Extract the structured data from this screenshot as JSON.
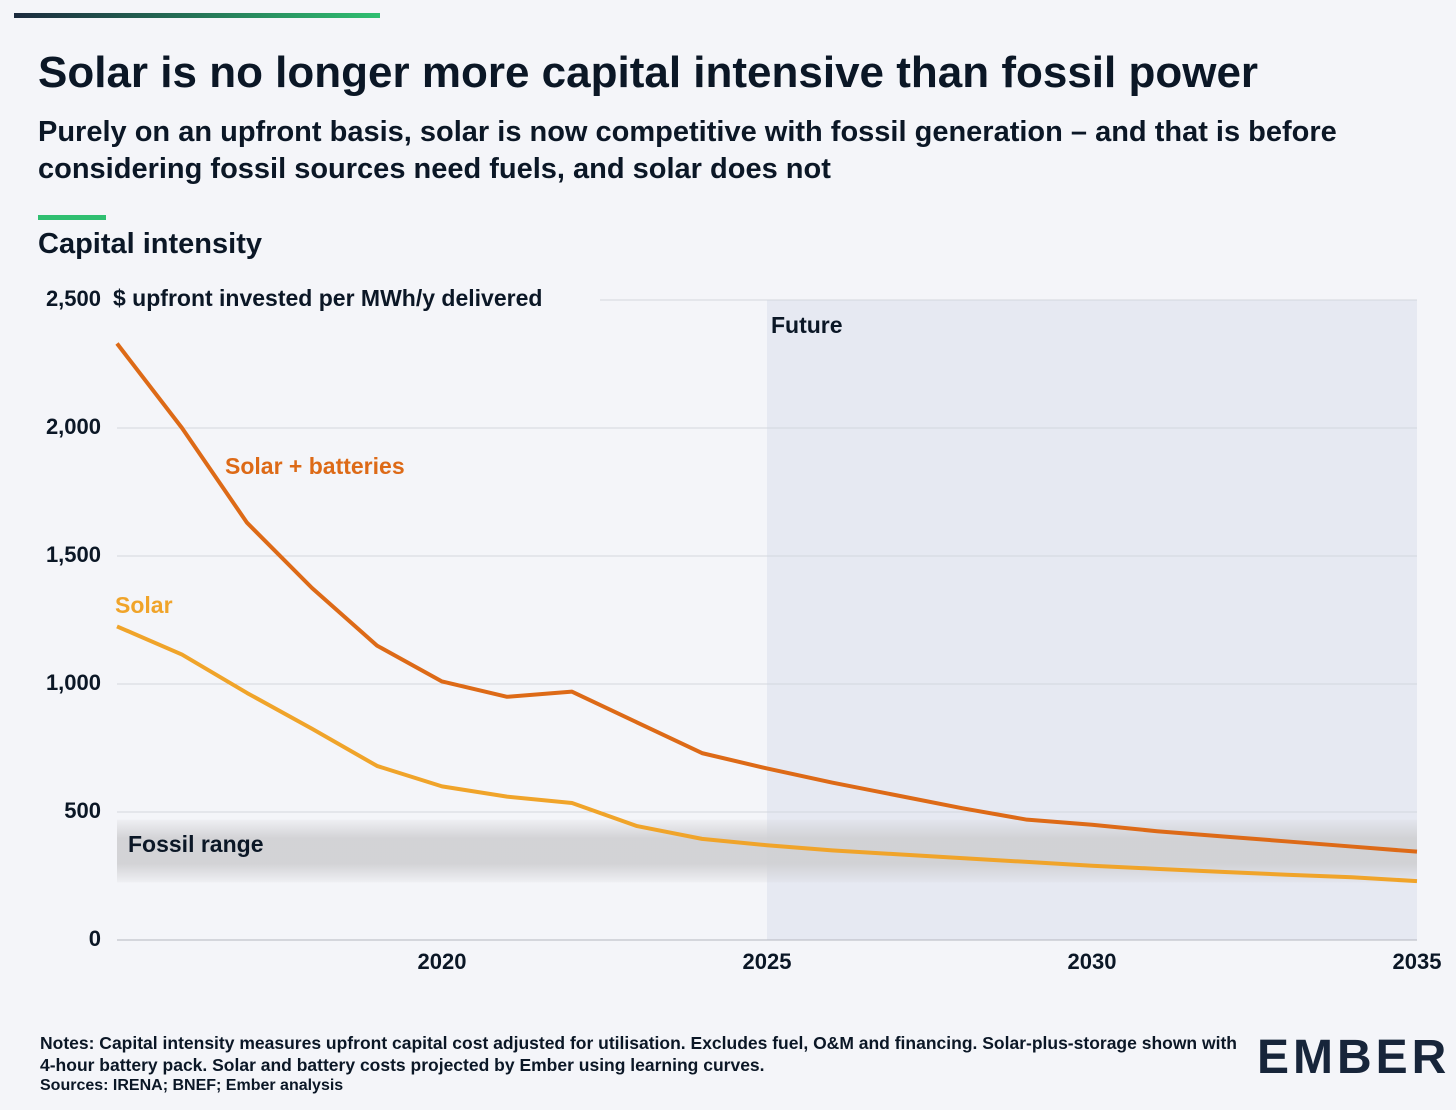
{
  "header": {
    "title": "Solar is no longer more capital intensive than fossil power",
    "subtitle": "Purely on an upfront basis, solar is now competitive with fossil generation – and that is before considering fossil sources need fuels, and solar does not",
    "section": "Capital intensity"
  },
  "chart_data": {
    "type": "line",
    "y_label": "$ upfront invested per MWh/y delivered",
    "x": [
      2015,
      2016,
      2017,
      2018,
      2019,
      2020,
      2021,
      2022,
      2023,
      2024,
      2025,
      2026,
      2027,
      2028,
      2029,
      2030,
      2031,
      2032,
      2033,
      2034,
      2035
    ],
    "series": [
      {
        "name": "Solar + batteries",
        "color": "#dd6a17",
        "values": [
          2330,
          2000,
          1630,
          1375,
          1150,
          1010,
          950,
          970,
          850,
          730,
          670,
          615,
          565,
          515,
          470,
          450,
          425,
          405,
          385,
          365,
          345
        ]
      },
      {
        "name": "Solar",
        "color": "#f0a42a",
        "values": [
          1225,
          1115,
          965,
          825,
          680,
          600,
          560,
          535,
          445,
          395,
          370,
          350,
          335,
          320,
          305,
          290,
          278,
          266,
          255,
          245,
          230
        ]
      }
    ],
    "fossil_range": {
      "label": "Fossil range",
      "low": 225,
      "high": 470
    },
    "future": {
      "label": "Future",
      "start": 2025
    },
    "xlim": [
      2015,
      2035
    ],
    "xticks": [
      2020,
      2025,
      2030,
      2035
    ],
    "ylim": [
      0,
      2500
    ],
    "yticks": [
      0,
      500,
      {
        "value": 1000,
        "label": "1,000"
      },
      {
        "value": 1500,
        "label": "1,500"
      },
      {
        "value": 2000,
        "label": "2,000"
      },
      {
        "value": 2500,
        "label": "2,500"
      }
    ],
    "grid": true
  },
  "footer": {
    "notes": "Notes: Capital intensity measures upfront capital cost adjusted for utilisation. Excludes fuel, O&M and financing. Solar-plus-storage shown with 4-hour battery pack. Solar and battery costs projected by Ember using learning curves.",
    "sources": "Sources: IRENA; BNEF; Ember analysis",
    "logo": "EMBER"
  }
}
